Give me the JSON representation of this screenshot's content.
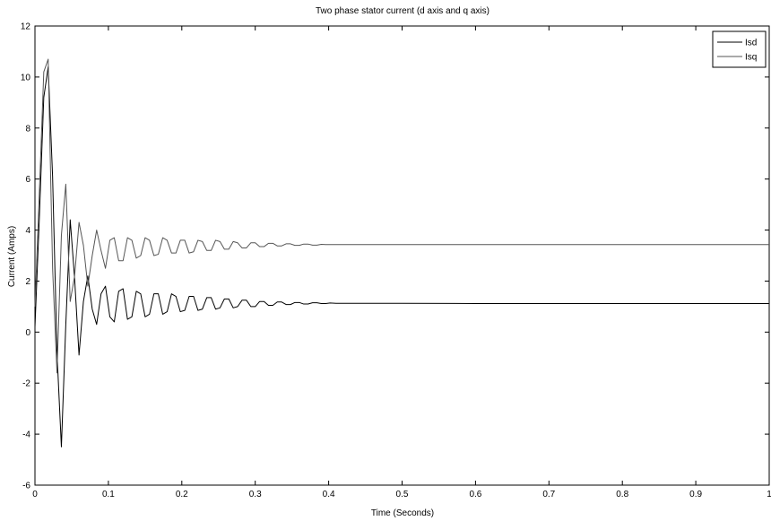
{
  "chart_data": {
    "type": "line",
    "title": "Two phase stator current (d axis and q axis)",
    "xlabel": "Time (Seconds)",
    "ylabel": "Current (Amps)",
    "xlim": [
      0,
      1
    ],
    "ylim": [
      -6,
      12
    ],
    "xticks": [
      0,
      0.1,
      0.2,
      0.3,
      0.4,
      0.5,
      0.6,
      0.7,
      0.8,
      0.9,
      1
    ],
    "xtick_labels": [
      "0",
      "0.1",
      "0.2",
      "0.3",
      "0.4",
      "0.5",
      "0.6",
      "0.7",
      "0.8",
      "0.9",
      "1"
    ],
    "yticks": [
      -6,
      -4,
      -2,
      0,
      2,
      4,
      6,
      8,
      10,
      12
    ],
    "ytick_labels": [
      "-6",
      "-4",
      "-2",
      "0",
      "2",
      "4",
      "6",
      "8",
      "10",
      "12"
    ],
    "grid": false,
    "legend_position": "top-right",
    "series": [
      {
        "name": "Isd",
        "color": "#000000",
        "x": [
          0,
          0.006,
          0.012,
          0.018,
          0.024,
          0.03,
          0.036,
          0.042,
          0.048,
          0.054,
          0.06,
          0.066,
          0.072,
          0.078,
          0.084,
          0.09,
          0.096,
          0.102,
          0.108,
          0.114,
          0.12,
          0.126,
          0.132,
          0.138,
          0.144,
          0.15,
          0.156,
          0.162,
          0.168,
          0.174,
          0.18,
          0.186,
          0.192,
          0.198,
          0.204,
          0.21,
          0.216,
          0.222,
          0.228,
          0.234,
          0.24,
          0.246,
          0.252,
          0.258,
          0.264,
          0.27,
          0.276,
          0.282,
          0.288,
          0.294,
          0.3,
          0.306,
          0.312,
          0.318,
          0.324,
          0.33,
          0.336,
          0.342,
          0.348,
          0.354,
          0.36,
          0.366,
          0.372,
          0.378,
          0.384,
          0.39,
          0.396,
          0.402,
          0.41,
          0.42,
          0.44,
          0.46,
          0.48,
          0.5,
          0.6,
          0.7,
          0.8,
          0.9,
          1.0
        ],
        "y": [
          0.2,
          4.5,
          9.2,
          10.4,
          6.1,
          -0.8,
          -4.5,
          0.3,
          4.4,
          2.1,
          -0.9,
          1.2,
          2.2,
          0.9,
          0.3,
          1.5,
          1.8,
          0.6,
          0.4,
          1.6,
          1.7,
          0.5,
          0.6,
          1.6,
          1.5,
          0.6,
          0.7,
          1.5,
          1.5,
          0.7,
          0.8,
          1.5,
          1.4,
          0.8,
          0.85,
          1.4,
          1.4,
          0.85,
          0.9,
          1.35,
          1.35,
          0.9,
          0.95,
          1.3,
          1.3,
          0.95,
          1.0,
          1.25,
          1.25,
          1.0,
          1.0,
          1.2,
          1.2,
          1.05,
          1.05,
          1.18,
          1.18,
          1.08,
          1.08,
          1.16,
          1.16,
          1.1,
          1.1,
          1.15,
          1.15,
          1.12,
          1.12,
          1.14,
          1.13,
          1.13,
          1.13,
          1.13,
          1.13,
          1.13,
          1.12,
          1.12,
          1.12,
          1.12,
          1.12
        ]
      },
      {
        "name": "Isq",
        "color": "#555555",
        "x": [
          0,
          0.006,
          0.012,
          0.018,
          0.024,
          0.03,
          0.036,
          0.042,
          0.048,
          0.054,
          0.06,
          0.066,
          0.072,
          0.078,
          0.084,
          0.09,
          0.096,
          0.102,
          0.108,
          0.114,
          0.12,
          0.126,
          0.132,
          0.138,
          0.144,
          0.15,
          0.156,
          0.162,
          0.168,
          0.174,
          0.18,
          0.186,
          0.192,
          0.198,
          0.204,
          0.21,
          0.216,
          0.222,
          0.228,
          0.234,
          0.24,
          0.246,
          0.252,
          0.258,
          0.264,
          0.27,
          0.276,
          0.282,
          0.288,
          0.294,
          0.3,
          0.306,
          0.312,
          0.318,
          0.324,
          0.33,
          0.336,
          0.342,
          0.348,
          0.354,
          0.36,
          0.366,
          0.372,
          0.378,
          0.384,
          0.39,
          0.396,
          0.402,
          0.41,
          0.42,
          0.44,
          0.46,
          0.48,
          0.5,
          0.6,
          0.7,
          0.8,
          0.9,
          1.0
        ],
        "y": [
          1.0,
          5.5,
          10.2,
          10.7,
          2.5,
          -1.6,
          3.8,
          5.8,
          1.2,
          2.2,
          4.3,
          3.4,
          1.8,
          3.0,
          4.0,
          3.2,
          2.5,
          3.6,
          3.7,
          2.8,
          2.8,
          3.7,
          3.6,
          2.9,
          3.0,
          3.7,
          3.6,
          3.0,
          3.05,
          3.7,
          3.6,
          3.1,
          3.1,
          3.6,
          3.6,
          3.1,
          3.15,
          3.6,
          3.55,
          3.2,
          3.2,
          3.6,
          3.55,
          3.25,
          3.25,
          3.55,
          3.5,
          3.3,
          3.3,
          3.5,
          3.5,
          3.35,
          3.35,
          3.48,
          3.48,
          3.38,
          3.38,
          3.46,
          3.46,
          3.4,
          3.4,
          3.45,
          3.45,
          3.41,
          3.41,
          3.44,
          3.43,
          3.43,
          3.43,
          3.43,
          3.43,
          3.43,
          3.43,
          3.43,
          3.43,
          3.43,
          3.43,
          3.43,
          3.43
        ]
      }
    ]
  }
}
